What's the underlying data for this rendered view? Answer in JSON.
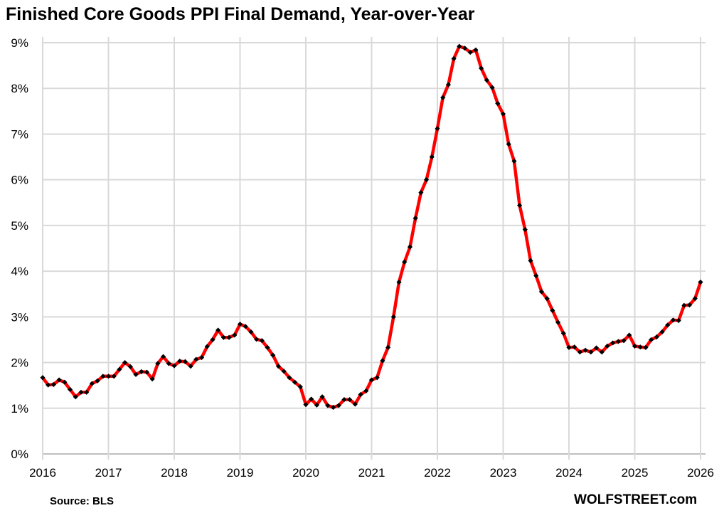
{
  "chart_data": {
    "type": "line",
    "title": "Finished Core Goods PPI Final Demand, Year-over-Year",
    "xlabel": "",
    "ylabel": "",
    "source": "Source: BLS",
    "brand": "WOLFSTREET.com",
    "ylim": [
      0,
      9
    ],
    "y_ticks": [
      "0%",
      "1%",
      "2%",
      "3%",
      "4%",
      "5%",
      "6%",
      "7%",
      "8%",
      "9%"
    ],
    "x_ticks": [
      "2016",
      "2017",
      "2018",
      "2019",
      "2020",
      "2021",
      "2022",
      "2023",
      "2024",
      "2025",
      "2026"
    ],
    "grid": true,
    "start": "2016-01",
    "frequency": "monthly",
    "line_color": "#ff0000",
    "marker_color": "#000000",
    "series": [
      {
        "name": "Finished Core Goods PPI YoY %",
        "values": [
          1.67,
          1.51,
          1.52,
          1.62,
          1.57,
          1.41,
          1.25,
          1.35,
          1.35,
          1.54,
          1.6,
          1.7,
          1.7,
          1.7,
          1.85,
          2.0,
          1.91,
          1.74,
          1.8,
          1.79,
          1.64,
          1.98,
          2.13,
          1.98,
          1.93,
          2.03,
          2.02,
          1.92,
          2.07,
          2.11,
          2.35,
          2.5,
          2.71,
          2.55,
          2.55,
          2.6,
          2.84,
          2.79,
          2.67,
          2.51,
          2.48,
          2.33,
          2.16,
          1.92,
          1.81,
          1.67,
          1.57,
          1.47,
          1.08,
          1.2,
          1.07,
          1.25,
          1.06,
          1.02,
          1.06,
          1.19,
          1.19,
          1.09,
          1.3,
          1.38,
          1.62,
          1.67,
          2.04,
          2.33,
          3.0,
          3.76,
          4.2,
          4.53,
          5.16,
          5.72,
          6.0,
          6.5,
          7.12,
          7.8,
          8.08,
          8.65,
          8.92,
          8.88,
          8.79,
          8.84,
          8.44,
          8.18,
          8.02,
          7.67,
          7.44,
          6.78,
          6.41,
          5.44,
          4.91,
          4.23,
          3.9,
          3.55,
          3.4,
          3.14,
          2.88,
          2.64,
          2.33,
          2.34,
          2.23,
          2.27,
          2.23,
          2.32,
          2.23,
          2.36,
          2.43,
          2.46,
          2.48,
          2.6,
          2.36,
          2.34,
          2.33,
          2.5,
          2.56,
          2.67,
          2.82,
          2.93,
          2.92,
          3.25,
          3.26,
          3.4,
          3.76
        ]
      }
    ]
  }
}
